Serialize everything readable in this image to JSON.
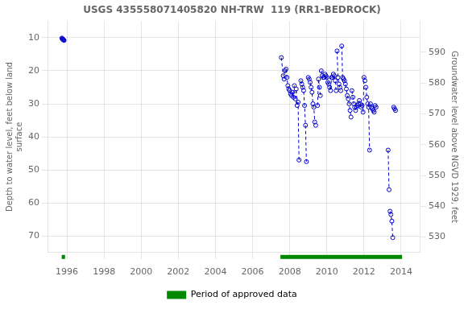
{
  "chart_data": {
    "type": "line",
    "title": "USGS 435558071405820 NH-TRW  119 (RR1-BEDROCK)",
    "ylabel": "Depth to water level, feet below land\nsurface",
    "y2label": "Groundwater level above NGVD 1929, feet",
    "xlim": [
      1995.0,
      2015.0
    ],
    "ylim": [
      75,
      5
    ],
    "y2lim": [
      525,
      600
    ],
    "xticks": [
      1996,
      1998,
      2000,
      2002,
      2004,
      2006,
      2008,
      2010,
      2012,
      2014
    ],
    "yticks": [
      10,
      20,
      30,
      40,
      50,
      60,
      70
    ],
    "y2ticks": [
      530,
      540,
      550,
      560,
      570,
      580,
      590
    ],
    "grid": true,
    "legend": "bottom",
    "color": "#0000cc",
    "marker": "circle",
    "line_style": "dashed",
    "series": [
      {
        "x": [
          1995.73,
          1995.75,
          1995.77,
          1995.79,
          1995.81,
          1995.83,
          1995.85
        ],
        "values": [
          10.1,
          10.3,
          10.4,
          10.5,
          10.6,
          10.7,
          10.8
        ]
      },
      {
        "x": [
          2007.55,
          2007.65
        ],
        "values": [
          16.0,
          21.5
        ]
      },
      {
        "x": [
          2007.7,
          2007.75
        ],
        "values": [
          22.5,
          20.0
        ]
      },
      {
        "x": [
          2007.8,
          2007.85,
          2007.9,
          2007.95,
          2008.0,
          2008.05,
          2008.1,
          2008.15,
          2008.2,
          2008.25
        ],
        "values": [
          19.5,
          22.0,
          24.5,
          25.5,
          26.0,
          27.0,
          27.5,
          26.5,
          28.0,
          24.5
        ]
      },
      {
        "x": [
          2008.3,
          2008.35,
          2008.4,
          2008.45,
          2008.5
        ],
        "values": [
          28.5,
          25.5,
          30.5,
          29.5,
          47.0
        ]
      },
      {
        "x": [
          2008.6,
          2008.65,
          2008.7,
          2008.75,
          2008.8,
          2008.85,
          2008.9
        ],
        "values": [
          23.0,
          24.0,
          25.0,
          26.0,
          30.5,
          36.5,
          47.5
        ]
      },
      {
        "x": [
          2009.0,
          2009.05
        ],
        "values": [
          22.0,
          22.5
        ]
      },
      {
        "x": [
          2009.1,
          2009.15,
          2009.2,
          2009.25,
          2009.3,
          2009.35
        ],
        "values": [
          23.5,
          25.0,
          26.5,
          30.0,
          31.0,
          35.5
        ]
      },
      {
        "x": [
          2009.4
        ],
        "values": [
          36.5
        ]
      },
      {
        "x": [
          2009.5,
          2009.55,
          2009.6,
          2009.65
        ],
        "values": [
          30.5,
          22.5,
          25.0,
          27.5
        ]
      },
      {
        "x": [
          2009.7,
          2009.75,
          2009.8
        ],
        "values": [
          20.0,
          21.5,
          22.0
        ]
      },
      {
        "x": [
          2009.85,
          2009.9,
          2009.95,
          2010.0,
          2010.05,
          2010.1,
          2010.15,
          2010.2,
          2010.25,
          2010.3,
          2010.35
        ],
        "values": [
          22.0,
          21.0,
          21.5,
          22.0,
          23.5,
          24.0,
          25.0,
          26.0,
          22.0,
          22.0,
          21.0
        ]
      },
      {
        "x": [
          2010.4,
          2010.45,
          2010.5
        ],
        "values": [
          21.5,
          23.0,
          26.0
        ]
      },
      {
        "x": [
          2010.55,
          2010.6,
          2010.65,
          2010.7,
          2010.75
        ],
        "values": [
          14.0,
          22.0,
          24.0,
          25.0,
          26.0
        ]
      },
      {
        "x": [
          2010.8,
          2010.85
        ],
        "values": [
          12.5,
          22.0
        ]
      },
      {
        "x": [
          2010.9,
          2010.95,
          2011.0,
          2011.05,
          2011.1,
          2011.15,
          2011.2,
          2011.25,
          2011.3
        ],
        "values": [
          22.5,
          23.0,
          24.0,
          25.5,
          27.5,
          28.5,
          30.0,
          32.0,
          34.0
        ]
      },
      {
        "x": [
          2011.35,
          2011.4,
          2011.45
        ],
        "values": [
          26.0,
          28.0,
          30.0
        ]
      },
      {
        "x": [
          2011.5,
          2011.55,
          2011.6,
          2011.65,
          2011.7,
          2011.75
        ],
        "values": [
          31.0,
          32.0,
          31.0,
          30.5,
          30.0,
          29.0
        ]
      },
      {
        "x": [
          2011.8,
          2011.85,
          2011.9
        ],
        "values": [
          30.0,
          31.0,
          30.5
        ]
      },
      {
        "x": [
          2011.95,
          2012.0,
          2012.05
        ],
        "values": [
          32.5,
          22.0,
          23.0
        ]
      },
      {
        "x": [
          2012.1,
          2012.15,
          2012.2,
          2012.25,
          2012.3
        ],
        "values": [
          25.0,
          28.0,
          30.0,
          31.0,
          44.0
        ]
      },
      {
        "x": [
          2012.35,
          2012.4,
          2012.45,
          2012.5,
          2012.55
        ],
        "values": [
          30.0,
          31.0,
          31.5,
          32.0,
          32.5
        ]
      },
      {
        "x": [
          2012.6,
          2012.65
        ],
        "values": [
          30.5,
          31.0
        ]
      },
      {
        "x": [
          2013.3,
          2013.35
        ],
        "values": [
          44.0,
          56.0
        ]
      },
      {
        "x": [
          2013.4,
          2013.45,
          2013.5,
          2013.55
        ],
        "values": [
          62.5,
          63.5,
          65.5,
          70.5
        ]
      },
      {
        "x": [
          2013.6,
          2013.65,
          2013.7
        ],
        "values": [
          31.0,
          31.5,
          32.0
        ]
      }
    ],
    "periods": {
      "name": "Period of approved data",
      "color": "#008800",
      "ranges": [
        [
          1995.72,
          1995.9
        ],
        [
          2007.5,
          2014.05
        ]
      ]
    }
  }
}
